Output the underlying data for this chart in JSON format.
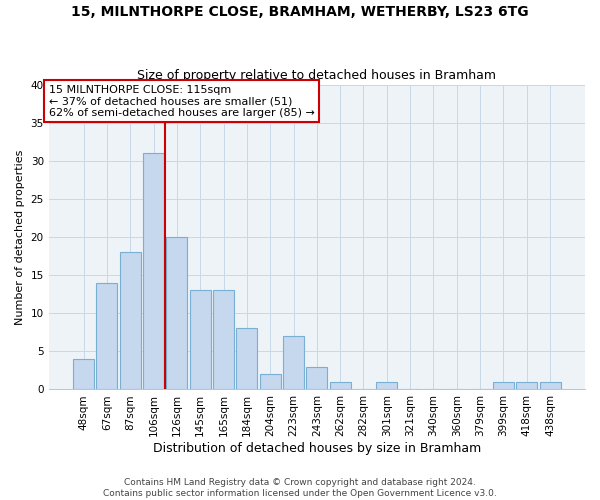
{
  "title": "15, MILNTHORPE CLOSE, BRAMHAM, WETHERBY, LS23 6TG",
  "subtitle": "Size of property relative to detached houses in Bramham",
  "xlabel": "Distribution of detached houses by size in Bramham",
  "ylabel": "Number of detached properties",
  "categories": [
    "48sqm",
    "67sqm",
    "87sqm",
    "106sqm",
    "126sqm",
    "145sqm",
    "165sqm",
    "184sqm",
    "204sqm",
    "223sqm",
    "243sqm",
    "262sqm",
    "282sqm",
    "301sqm",
    "321sqm",
    "340sqm",
    "360sqm",
    "379sqm",
    "399sqm",
    "418sqm",
    "438sqm"
  ],
  "values": [
    4,
    14,
    18,
    31,
    20,
    13,
    13,
    8,
    2,
    7,
    3,
    1,
    0,
    1,
    0,
    0,
    0,
    0,
    1,
    1,
    1
  ],
  "bar_color": "#c5d8ee",
  "bar_edge_color": "#7aafd4",
  "vline_x_index": 3.5,
  "vline_color": "#cc0000",
  "annotation_box_text": "15 MILNTHORPE CLOSE: 115sqm\n← 37% of detached houses are smaller (51)\n62% of semi-detached houses are larger (85) →",
  "annotation_box_edge_color": "#cc0000",
  "ylim": [
    0,
    40
  ],
  "yticks": [
    0,
    5,
    10,
    15,
    20,
    25,
    30,
    35,
    40
  ],
  "grid_color": "#c8d8e8",
  "background_color": "#ffffff",
  "plot_bg_color": "#eef3f8",
  "footer": "Contains HM Land Registry data © Crown copyright and database right 2024.\nContains public sector information licensed under the Open Government Licence v3.0.",
  "title_fontsize": 10,
  "subtitle_fontsize": 9,
  "xlabel_fontsize": 9,
  "ylabel_fontsize": 8,
  "tick_fontsize": 7.5,
  "annotation_fontsize": 8,
  "footer_fontsize": 6.5
}
